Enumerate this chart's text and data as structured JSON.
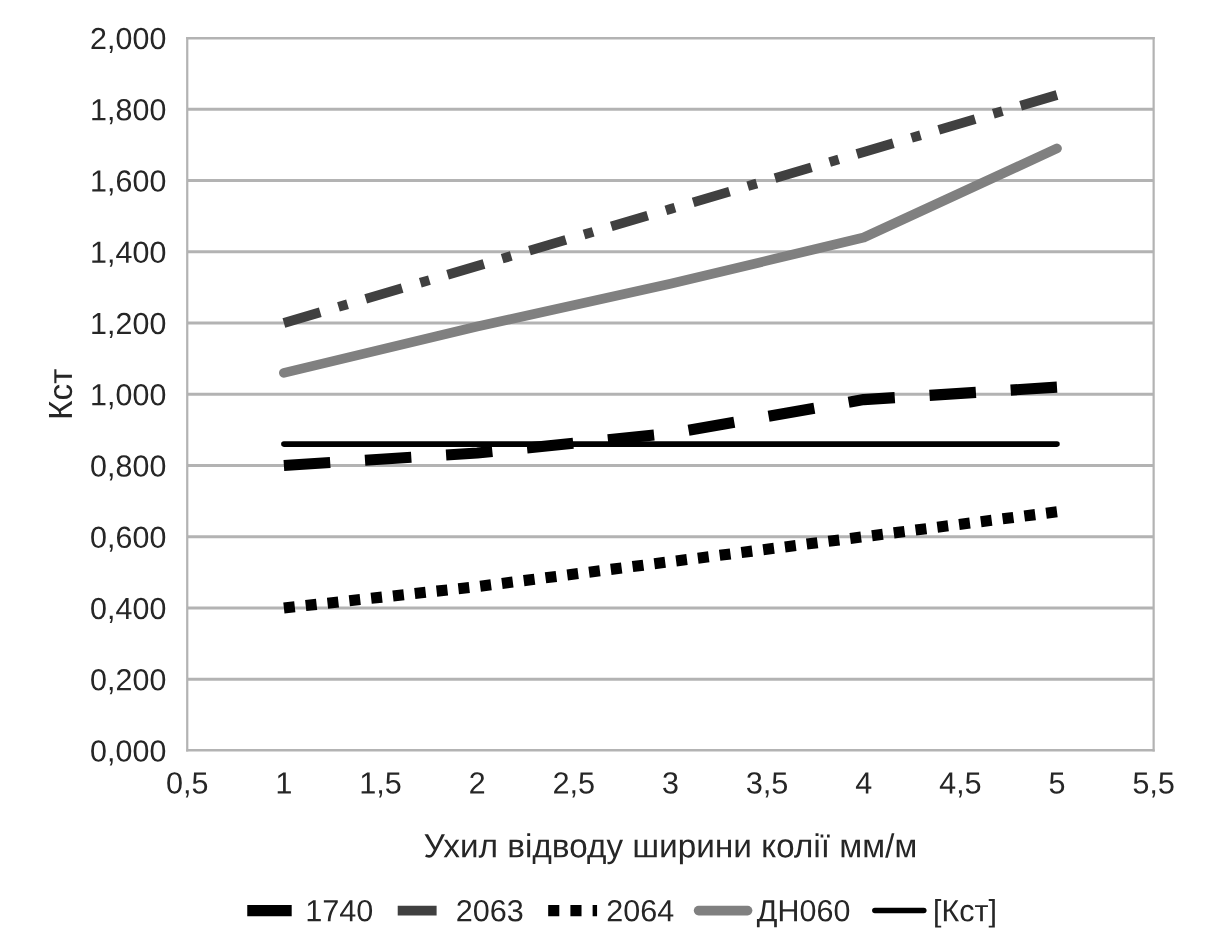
{
  "chart_data": {
    "type": "line",
    "xlabel": "Ухил відводу ширини колії мм/м",
    "ylabel": "Кст",
    "x": [
      1,
      2,
      3,
      4,
      5
    ],
    "series": [
      {
        "name": "1740",
        "color": "#000000",
        "line_style": "dashed",
        "values": [
          0.8,
          0.835,
          0.89,
          0.985,
          1.02
        ]
      },
      {
        "name": "2063",
        "color": "#404040",
        "line_style": "dashdot",
        "values": [
          1.2,
          1.36,
          1.52,
          1.68,
          1.84
        ]
      },
      {
        "name": "2064",
        "color": "#000000",
        "line_style": "dotted",
        "values": [
          0.4,
          0.46,
          0.53,
          0.6,
          0.67
        ]
      },
      {
        "name": "ДН060",
        "color": "#808080",
        "line_style": "solid",
        "values": [
          1.06,
          1.19,
          1.31,
          1.44,
          1.69
        ]
      },
      {
        "name": "[Кст]",
        "color": "#000000",
        "line_style": "solid",
        "values": [
          0.86,
          0.86,
          0.86,
          0.86,
          0.86
        ]
      }
    ],
    "xlim": [
      0.5,
      5.5
    ],
    "xticks": [
      {
        "value": 0.5,
        "label": "0,5"
      },
      {
        "value": 1,
        "label": "1"
      },
      {
        "value": 1.5,
        "label": "1,5"
      },
      {
        "value": 2,
        "label": "2"
      },
      {
        "value": 2.5,
        "label": "2,5"
      },
      {
        "value": 3,
        "label": "3"
      },
      {
        "value": 3.5,
        "label": "3,5"
      },
      {
        "value": 4,
        "label": "4"
      },
      {
        "value": 4.5,
        "label": "4,5"
      },
      {
        "value": 5,
        "label": "5"
      },
      {
        "value": 5.5,
        "label": "5,5"
      }
    ],
    "ylim": [
      0,
      2
    ],
    "yticks": [
      {
        "value": 0,
        "label": "0,000"
      },
      {
        "value": 0.2,
        "label": "0,200"
      },
      {
        "value": 0.4,
        "label": "0,400"
      },
      {
        "value": 0.6,
        "label": "0,600"
      },
      {
        "value": 0.8,
        "label": "0,800"
      },
      {
        "value": 1.0,
        "label": "1,000"
      },
      {
        "value": 1.2,
        "label": "1,200"
      },
      {
        "value": 1.4,
        "label": "1,400"
      },
      {
        "value": 1.6,
        "label": "1,600"
      },
      {
        "value": 1.8,
        "label": "1,800"
      },
      {
        "value": 2.0,
        "label": "2,000"
      }
    ],
    "grid": "y",
    "legend": "bottom",
    "marker": "none"
  }
}
